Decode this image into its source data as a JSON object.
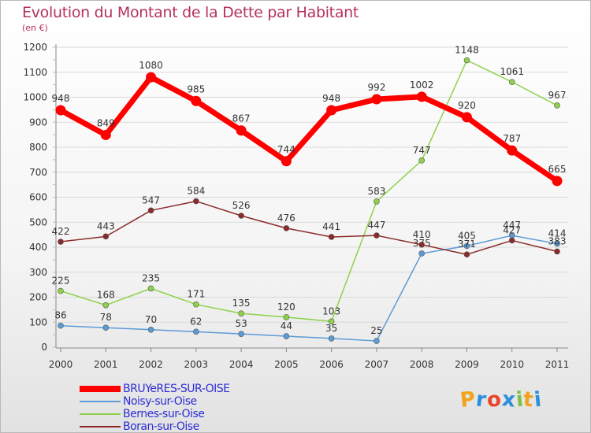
{
  "title": "Evolution du Montant de la Dette par Habitant",
  "subtitle": "(en €)",
  "chart_data": {
    "type": "line",
    "title": "Evolution du Montant de la Dette par Habitant",
    "ylabel": "(en €)",
    "xlabel": "",
    "ylim": [
      0,
      1200
    ],
    "yticks": [
      0,
      100,
      200,
      300,
      400,
      500,
      600,
      700,
      800,
      900,
      1000,
      1100,
      1200
    ],
    "grid": "horizontal",
    "categories": [
      "2000",
      "2001",
      "2002",
      "2003",
      "2004",
      "2005",
      "2006",
      "2007",
      "2008",
      "2009",
      "2010",
      "2011"
    ],
    "series": [
      {
        "name": "BRUYeRES-SUR-OISE",
        "color": "#ff0000",
        "values": [
          948,
          849,
          1080,
          985,
          867,
          744,
          948,
          992,
          1002,
          920,
          787,
          665
        ]
      },
      {
        "name": "Noisy-sur-Oise",
        "color": "#5b9bd5",
        "values": [
          86,
          78,
          70,
          62,
          53,
          44,
          35,
          25,
          375,
          405,
          447,
          414
        ]
      },
      {
        "name": "Bernes-sur-Oise",
        "color": "#8ed24a",
        "values": [
          225,
          168,
          235,
          171,
          135,
          120,
          103,
          583,
          747,
          1148,
          1061,
          967
        ]
      },
      {
        "name": "Boran-sur-Oise",
        "color": "#8b2a2a",
        "values": [
          422,
          443,
          547,
          584,
          526,
          476,
          441,
          447,
          410,
          371,
          427,
          383
        ]
      }
    ]
  },
  "logo": {
    "text": "Proxiti",
    "letters": [
      "P",
      "r",
      "o",
      "x",
      "i",
      "t",
      "i"
    ],
    "colors": [
      "#f3a21c",
      "#2a8fdc",
      "#e8452c",
      "#2a8fdc",
      "#7cc143",
      "#f3a21c",
      "#2a8fdc"
    ]
  }
}
